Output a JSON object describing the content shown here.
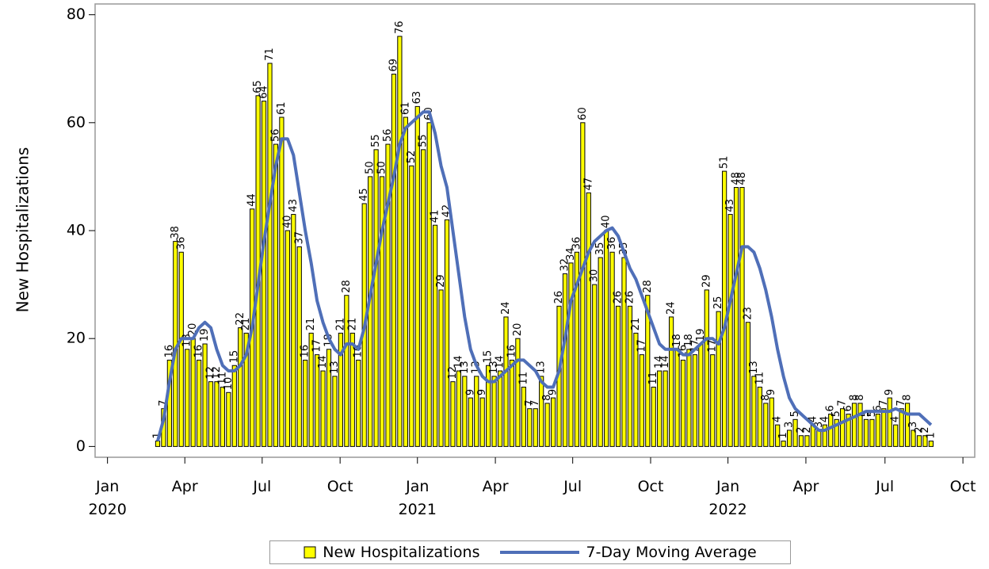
{
  "chart_data": {
    "type": "bar",
    "y_label": "New Hospitalizations",
    "categories": [
      null,
      null,
      null,
      null,
      null,
      null,
      null,
      null,
      null,
      null,
      null,
      null,
      null,
      null,
      null,
      null,
      null,
      null,
      null,
      null,
      null,
      null,
      null,
      null,
      null,
      null,
      null,
      null,
      null,
      null,
      null,
      null,
      null,
      null,
      null,
      null,
      null,
      null,
      null,
      null,
      null,
      null,
      null,
      null,
      null,
      null,
      null,
      null,
      null,
      null,
      null,
      null,
      null,
      null,
      null,
      null,
      null,
      null,
      null,
      null,
      null,
      null,
      null,
      null,
      null,
      null,
      null,
      null,
      null,
      null,
      null,
      null,
      null,
      null,
      null,
      null,
      null,
      null,
      null,
      null,
      null,
      null,
      null,
      null,
      null,
      null,
      null,
      null,
      null,
      null,
      null,
      null,
      null,
      null,
      null,
      null,
      null,
      null,
      null,
      null,
      null,
      null,
      null,
      null,
      null,
      null,
      null,
      null,
      null,
      null,
      null,
      null,
      null,
      null,
      null,
      null,
      null,
      null,
      null,
      null,
      null,
      null,
      null,
      null,
      null,
      null,
      null,
      null,
      null,
      null,
      null,
      null
    ],
    "series": [
      {
        "name": "New Hospitalizations",
        "type": "bar",
        "color": "#ffff00",
        "values": [
          1,
          7,
          16,
          38,
          36,
          18,
          20,
          16,
          19,
          12,
          12,
          11,
          10,
          15,
          22,
          21,
          44,
          65,
          64,
          71,
          56,
          61,
          40,
          43,
          37,
          16,
          21,
          17,
          14,
          18,
          13,
          21,
          28,
          21,
          16,
          45,
          50,
          55,
          50,
          56,
          69,
          76,
          61,
          52,
          63,
          55,
          60,
          41,
          29,
          42,
          12,
          14,
          13,
          9,
          13,
          9,
          15,
          13,
          14,
          24,
          16,
          20,
          11,
          7,
          7,
          13,
          8,
          9,
          26,
          32,
          34,
          36,
          60,
          47,
          30,
          35,
          40,
          36,
          26,
          35,
          26,
          21,
          17,
          28,
          11,
          14,
          14,
          24,
          18,
          16,
          18,
          17,
          19,
          29,
          17,
          25,
          51,
          43,
          48,
          48,
          23,
          13,
          11,
          8,
          9,
          4,
          1,
          3,
          5,
          2,
          2,
          4,
          3,
          4,
          6,
          5,
          7,
          6,
          8,
          8,
          5,
          5,
          6,
          7,
          9,
          4,
          7,
          8,
          3,
          2,
          2,
          1
        ]
      },
      {
        "name": "7-Day Moving Average",
        "type": "line",
        "color": "#4f6fb8",
        "values": [
          1,
          5,
          12,
          18,
          20,
          20,
          20,
          22,
          23,
          22,
          18,
          15,
          14,
          14,
          15,
          17,
          22,
          30,
          38,
          45,
          52,
          57,
          57,
          54,
          47,
          40,
          34,
          27,
          23,
          20,
          18,
          17,
          19,
          19,
          18,
          22,
          28,
          34,
          40,
          45,
          50,
          56,
          59,
          60,
          61,
          62,
          62,
          58,
          52,
          48,
          40,
          32,
          24,
          18,
          15,
          13,
          12,
          12,
          13,
          14,
          15,
          16,
          16,
          15,
          14,
          12,
          11,
          11,
          14,
          20,
          27,
          30,
          33,
          36,
          38,
          39,
          40,
          40.5,
          39,
          36,
          33,
          31,
          28,
          25,
          22,
          19,
          18,
          18,
          18,
          17,
          17,
          18,
          19,
          20,
          20,
          19,
          22,
          27,
          32,
          37,
          37,
          36,
          33,
          29,
          24,
          18,
          13,
          9,
          7,
          6,
          5,
          4,
          3,
          3,
          3.5,
          4,
          4.5,
          5,
          5.5,
          6,
          6.5,
          6.5,
          6.5,
          6.5,
          6.5,
          7,
          6.5,
          6,
          6,
          6,
          5,
          4
        ]
      }
    ],
    "xlim": [
      -10.6,
      138.4
    ],
    "xticks": [
      {
        "value": -8.5,
        "label": "Jan\n2020"
      },
      {
        "value": 4.6,
        "label": "Apr"
      },
      {
        "value": 17.7,
        "label": "Jul"
      },
      {
        "value": 30.9,
        "label": "Oct"
      },
      {
        "value": 44.0,
        "label": "Jan\n2021"
      },
      {
        "value": 57.2,
        "label": "Apr"
      },
      {
        "value": 70.3,
        "label": "Jul"
      },
      {
        "value": 83.5,
        "label": "Oct"
      },
      {
        "value": 96.6,
        "label": "Jan\n2022"
      },
      {
        "value": 109.8,
        "label": "Apr"
      },
      {
        "value": 123.2,
        "label": "Jul"
      },
      {
        "value": 136.4,
        "label": "Oct"
      }
    ],
    "ylim": [
      -2,
      82
    ],
    "yticks": [
      0,
      20,
      40,
      60,
      80
    ],
    "legend": "bottom"
  }
}
